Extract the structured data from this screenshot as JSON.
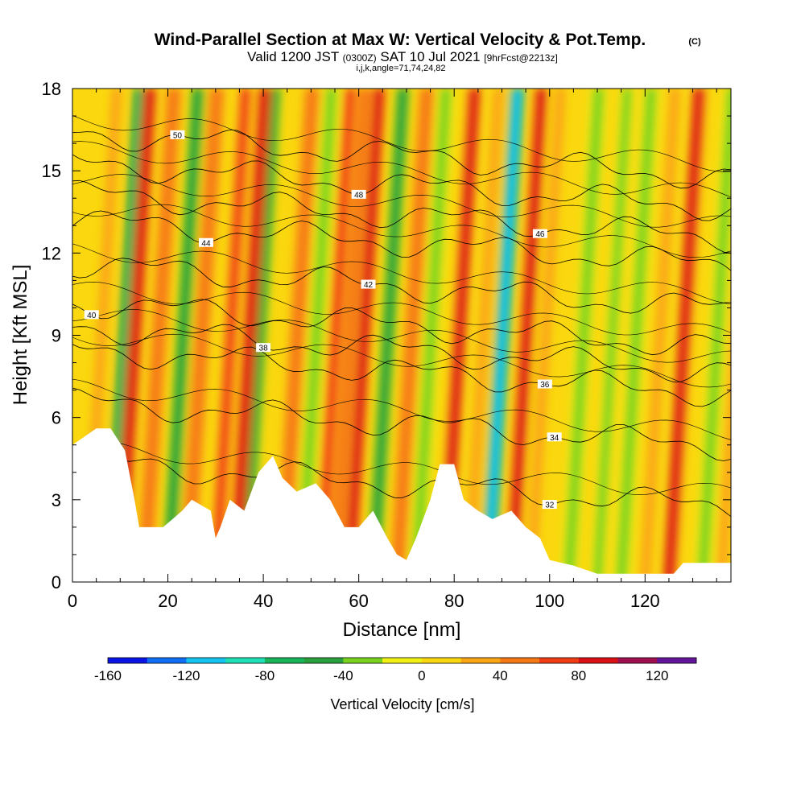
{
  "chart_data": {
    "type": "heatmap",
    "title": "Wind-Parallel Section at Max W: Vertical Velocity & Pot.Temp.",
    "copyright": "(C)",
    "subtitle_parts": [
      "Valid 1200 JST",
      "(0300Z)",
      "SAT 10 Jul 2021",
      "[9hrFcst@2213z]"
    ],
    "subtitle2": "i,j,k,angle=71,74,24,82",
    "xlabel": "Distance [nm]",
    "ylabel": "Height [Kft MSL]",
    "xlim": [
      0,
      138
    ],
    "ylim": [
      0,
      18
    ],
    "x_ticks": [
      "0",
      "20",
      "40",
      "60",
      "80",
      "100",
      "120"
    ],
    "y_ticks": [
      "0",
      "3",
      "6",
      "9",
      "12",
      "15",
      "18"
    ],
    "colorbar": {
      "label": "Vertical Velocity [cm/s]",
      "tick_labels": [
        "-160",
        "-120",
        "-80",
        "-40",
        "0",
        "40",
        "80",
        "120"
      ],
      "bins": [
        -160,
        -140,
        -120,
        -100,
        -80,
        -60,
        -40,
        -20,
        0,
        20,
        40,
        60,
        80,
        100,
        120,
        140
      ],
      "colors": [
        "#0a14e6",
        "#0f6ef5",
        "#14c3f0",
        "#1ee0b4",
        "#17b45a",
        "#28a03c",
        "#78d21e",
        "#f0f014",
        "#fad70f",
        "#faa514",
        "#f57814",
        "#f03c14",
        "#dc0f14",
        "#a00f50",
        "#64149b"
      ]
    },
    "contour_label": "Potential temperature",
    "contour_levels": [
      {
        "level": 32,
        "label": "32"
      },
      {
        "level": 34,
        "label": "34"
      },
      {
        "level": 36,
        "label": "36"
      },
      {
        "level": 38,
        "label": "38"
      },
      {
        "level": 40,
        "label": "40"
      },
      {
        "level": 42,
        "label": "42"
      },
      {
        "level": 44,
        "label": "44"
      },
      {
        "level": 46,
        "label": "46"
      },
      {
        "level": 48,
        "label": "48"
      },
      {
        "level": 50,
        "label": "50"
      }
    ],
    "updraft_cores": [
      {
        "x": 10,
        "w": 90
      },
      {
        "x": 30,
        "w": 70
      },
      {
        "x": 34,
        "w": 80
      },
      {
        "x": 52,
        "w": 60
      },
      {
        "x": 58,
        "w": 80
      },
      {
        "x": 78,
        "w": 90
      },
      {
        "x": 92,
        "w": 80
      },
      {
        "x": 125,
        "w": 80
      }
    ],
    "downdraft_cores": [
      {
        "x": 8,
        "w": -80
      },
      {
        "x": 20,
        "w": -50
      },
      {
        "x": 36,
        "w": -50
      },
      {
        "x": 63,
        "w": -60
      },
      {
        "x": 87,
        "w": -110
      },
      {
        "x": 110,
        "w": -30
      }
    ],
    "terrain": [
      {
        "x": 0,
        "y": 5.0
      },
      {
        "x": 5,
        "y": 5.6
      },
      {
        "x": 8,
        "y": 5.6
      },
      {
        "x": 11,
        "y": 4.8
      },
      {
        "x": 13,
        "y": 3.0
      },
      {
        "x": 14,
        "y": 2.0
      },
      {
        "x": 19,
        "y": 2.0
      },
      {
        "x": 21,
        "y": 2.3
      },
      {
        "x": 23,
        "y": 2.6
      },
      {
        "x": 25,
        "y": 3.0
      },
      {
        "x": 29,
        "y": 2.6
      },
      {
        "x": 30,
        "y": 1.6
      },
      {
        "x": 31,
        "y": 2.0
      },
      {
        "x": 33,
        "y": 3.0
      },
      {
        "x": 36,
        "y": 2.6
      },
      {
        "x": 39,
        "y": 4.0
      },
      {
        "x": 42,
        "y": 4.6
      },
      {
        "x": 44,
        "y": 3.8
      },
      {
        "x": 47,
        "y": 3.3
      },
      {
        "x": 51,
        "y": 3.6
      },
      {
        "x": 54,
        "y": 3.0
      },
      {
        "x": 57,
        "y": 2.0
      },
      {
        "x": 60,
        "y": 2.0
      },
      {
        "x": 63,
        "y": 2.6
      },
      {
        "x": 66,
        "y": 1.6
      },
      {
        "x": 68,
        "y": 1.0
      },
      {
        "x": 70,
        "y": 0.8
      },
      {
        "x": 72,
        "y": 1.6
      },
      {
        "x": 75,
        "y": 3.0
      },
      {
        "x": 77,
        "y": 4.3
      },
      {
        "x": 80,
        "y": 4.3
      },
      {
        "x": 82,
        "y": 3.0
      },
      {
        "x": 85,
        "y": 2.6
      },
      {
        "x": 88,
        "y": 2.3
      },
      {
        "x": 92,
        "y": 2.6
      },
      {
        "x": 95,
        "y": 2.0
      },
      {
        "x": 98,
        "y": 1.6
      },
      {
        "x": 100,
        "y": 0.8
      },
      {
        "x": 105,
        "y": 0.6
      },
      {
        "x": 110,
        "y": 0.3
      },
      {
        "x": 126,
        "y": 0.3
      },
      {
        "x": 128,
        "y": 0.7
      },
      {
        "x": 138,
        "y": 0.7
      }
    ]
  }
}
